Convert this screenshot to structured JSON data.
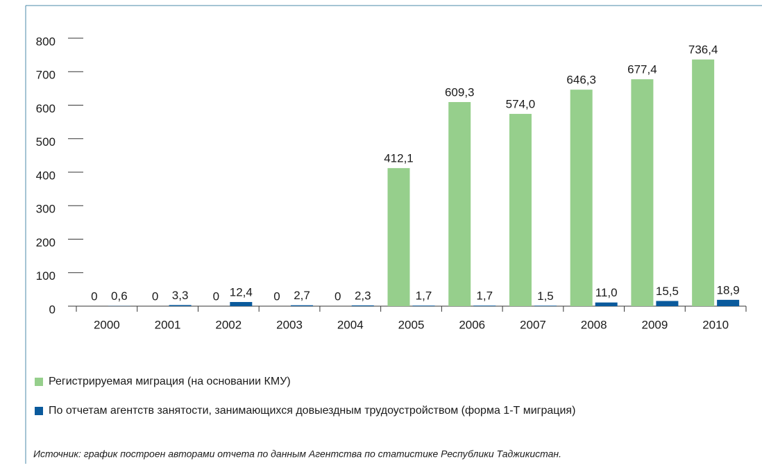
{
  "chart_data": {
    "type": "bar",
    "categories": [
      "2000",
      "2001",
      "2002",
      "2003",
      "2004",
      "2005",
      "2006",
      "2007",
      "2008",
      "2009",
      "2010"
    ],
    "series": [
      {
        "name": "Регистрируемая миграция (на основании КМУ)",
        "color": "#96cf8c",
        "values": [
          0,
          0,
          0,
          0,
          0,
          412.1,
          609.3,
          574.0,
          646.3,
          677.4,
          736.4
        ],
        "value_labels": [
          "0",
          "0",
          "0",
          "0",
          "0",
          "412,1",
          "609,3",
          "574,0",
          "646,3",
          "677,4",
          "736,4"
        ]
      },
      {
        "name": "По отчетам агентств занятости, занимающихся довыездным трудоустройством (форма 1-Т миграция)",
        "color": "#0a5a9c",
        "values": [
          0.6,
          3.3,
          12.4,
          2.7,
          2.3,
          1.7,
          1.7,
          1.5,
          11.0,
          15.5,
          18.9
        ],
        "value_labels": [
          "0,6",
          "3,3",
          "12,4",
          "2,7",
          "2,3",
          "1,7",
          "1,7",
          "1,5",
          "11,0",
          "15,5",
          "18,9"
        ]
      }
    ],
    "ylim": [
      0,
      800
    ],
    "yticks": [
      0,
      100,
      200,
      300,
      400,
      500,
      600,
      700,
      800
    ],
    "source": "Источник: график построен авторами отчета по данным Агентства по статистике Республики Таджикистан."
  }
}
